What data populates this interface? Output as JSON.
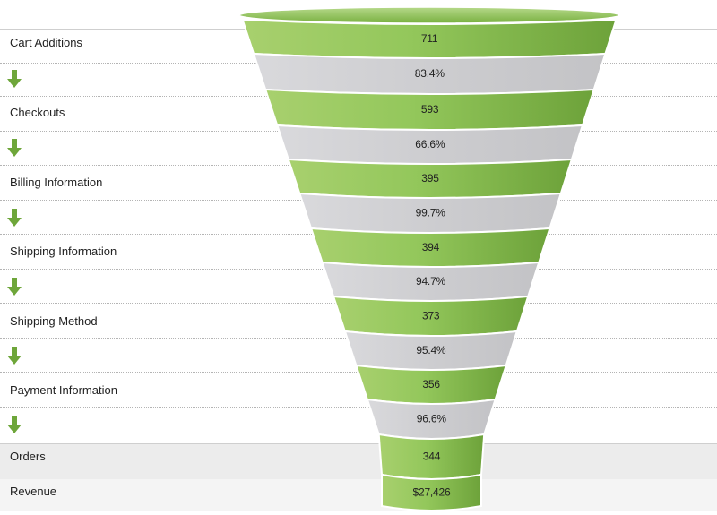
{
  "chart_data": {
    "type": "funnel",
    "stages": [
      {
        "label": "Cart Additions",
        "value": "711"
      },
      {
        "label": "Checkouts",
        "value": "593"
      },
      {
        "label": "Billing Information",
        "value": "395"
      },
      {
        "label": "Shipping Information",
        "value": "394"
      },
      {
        "label": "Shipping Method",
        "value": "373"
      },
      {
        "label": "Payment Information",
        "value": "356"
      },
      {
        "label": "Orders",
        "value": "344"
      },
      {
        "label": "Revenue",
        "value": "$27,426"
      }
    ],
    "conversions": [
      "83.4%",
      "66.6%",
      "99.7%",
      "94.7%",
      "95.4%",
      "96.6%"
    ],
    "values": [
      711,
      593,
      395,
      394,
      373,
      356,
      344
    ],
    "revenue": 27426
  },
  "colors": {
    "stage_green": "#8cc252",
    "stage_green_dark": "#6fa83b",
    "conversion_gray": "#cfcfd2",
    "arrow_green": "#6ea63a",
    "bottom_band": "#ececec"
  },
  "icons": {
    "arrow": "down-arrow-icon"
  }
}
